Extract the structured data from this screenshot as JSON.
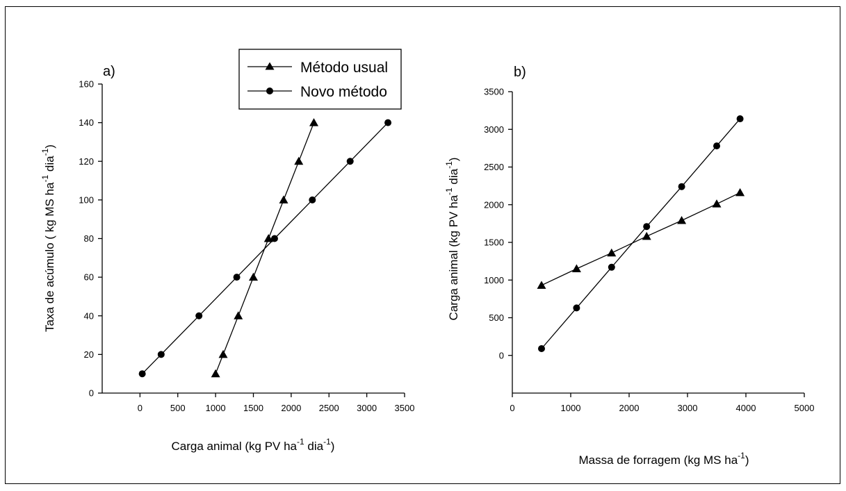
{
  "chart_data": [
    {
      "type": "line",
      "panel_label": "a)",
      "xlabel_main": "Carga animal (kg PV ha",
      "xlabel_sup1": "-1",
      "xlabel_mid": " dia",
      "xlabel_sup2": "-1",
      "xlabel_end": ")",
      "ylabel_main": "Taxa de acúmulo ( kg MS ha",
      "ylabel_sup1": "-1",
      "ylabel_mid": " dia",
      "ylabel_sup2": "-1",
      "ylabel_end": ")",
      "xlim": [
        -500,
        3500
      ],
      "ylim": [
        0,
        160
      ],
      "xticks": [
        0,
        500,
        1000,
        1500,
        2000,
        2500,
        3000,
        3500
      ],
      "yticks": [
        0,
        20,
        40,
        60,
        80,
        100,
        120,
        140,
        160
      ],
      "series": [
        {
          "name": "Método usual",
          "marker": "triangle",
          "x": [
            1000,
            1100,
            1300,
            1500,
            1700,
            1900,
            2100,
            2300
          ],
          "y": [
            10,
            20,
            40,
            60,
            80,
            100,
            120,
            140
          ]
        },
        {
          "name": "Novo método",
          "marker": "circle",
          "x": [
            30,
            280,
            780,
            1280,
            1780,
            2280,
            2780,
            3280
          ],
          "y": [
            10,
            20,
            40,
            60,
            80,
            100,
            120,
            140
          ]
        }
      ],
      "legend": {
        "position": "top-right"
      }
    },
    {
      "type": "line",
      "panel_label": "b)",
      "xlabel_main": "Massa de forragem (kg MS ha",
      "xlabel_sup1": "-1",
      "xlabel_end": ")",
      "ylabel_main": "Carga animal (kg PV ha",
      "ylabel_sup1": "-1",
      "ylabel_mid": " dia",
      "ylabel_sup2": "-1",
      "ylabel_end": ")",
      "xlim": [
        0,
        5000
      ],
      "ylim": [
        -500,
        3500
      ],
      "xticks": [
        0,
        1000,
        2000,
        3000,
        4000,
        5000
      ],
      "yticks": [
        0,
        500,
        1000,
        1500,
        2000,
        2500,
        3000,
        3500
      ],
      "series": [
        {
          "name": "Método usual",
          "marker": "triangle",
          "x": [
            500,
            1100,
            1700,
            2300,
            2900,
            3500,
            3900
          ],
          "y": [
            930,
            1150,
            1360,
            1580,
            1790,
            2010,
            2160
          ]
        },
        {
          "name": "Novo método",
          "marker": "circle",
          "x": [
            500,
            1100,
            1700,
            2300,
            2900,
            3500,
            3900
          ],
          "y": [
            90,
            630,
            1170,
            1710,
            2240,
            2780,
            3140
          ]
        }
      ]
    }
  ]
}
